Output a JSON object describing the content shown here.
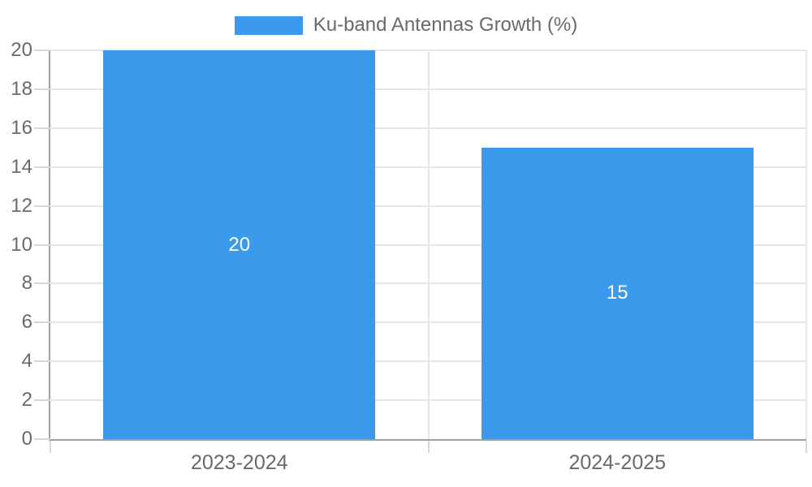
{
  "chart_data": {
    "type": "bar",
    "title": "Ku-band Antennas Growth (%)",
    "legend_label": "Ku-band Antennas Growth (%)",
    "legend_position": "top",
    "categories": [
      "2023-2024",
      "2024-2025"
    ],
    "values": [
      20,
      15
    ],
    "value_labels": [
      "20",
      "15"
    ],
    "xlabel": "",
    "ylabel": "",
    "ylim": [
      0,
      20
    ],
    "y_tick_step": 2,
    "y_ticks": [
      0,
      2,
      4,
      6,
      8,
      10,
      12,
      14,
      16,
      18,
      20
    ],
    "grid": true,
    "colors": {
      "bar": "#3B9AEC",
      "gridline": "#E6E6E6",
      "axis": "#A0A0A0",
      "tick": "#D8D8D8",
      "label_text": "#6A6A6A",
      "bar_value_text": "#FFFFFF"
    }
  }
}
